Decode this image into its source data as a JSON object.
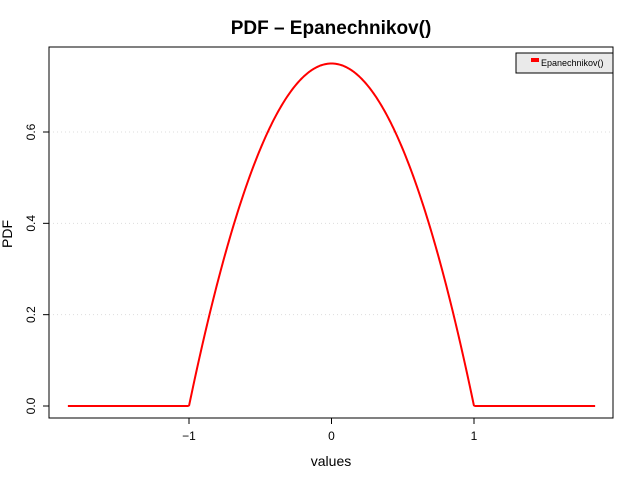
{
  "chart_data": {
    "type": "line",
    "title": "PDF – Epanechnikov()",
    "xlabel": "values",
    "ylabel": "PDF",
    "xlim": [
      -1.85,
      1.85
    ],
    "ylim": [
      0,
      0.75
    ],
    "x_ticks": [
      {
        "value": -1,
        "label": "−1"
      },
      {
        "value": 0,
        "label": "0"
      },
      {
        "value": 1,
        "label": "1"
      }
    ],
    "y_ticks": [
      {
        "value": 0.0,
        "label": "0.0"
      },
      {
        "value": 0.2,
        "label": "0.2"
      },
      {
        "value": 0.4,
        "label": "0.4"
      },
      {
        "value": 0.6,
        "label": "0.6"
      }
    ],
    "grid": "horizontal dotted",
    "legend_position": "top-right",
    "series": [
      {
        "name": "Epanechnikov()",
        "color": "#ff0000",
        "x": [
          -1.85,
          -1.5,
          -1.0,
          -0.9,
          -0.8,
          -0.7,
          -0.6,
          -0.5,
          -0.4,
          -0.3,
          -0.2,
          -0.1,
          0.0,
          0.1,
          0.2,
          0.3,
          0.4,
          0.5,
          0.6,
          0.7,
          0.8,
          0.9,
          1.0,
          1.5,
          1.85
        ],
        "y": [
          0.0,
          0.0,
          0.0,
          0.1425,
          0.27,
          0.3825,
          0.48,
          0.5625,
          0.63,
          0.6825,
          0.72,
          0.7425,
          0.75,
          0.7425,
          0.72,
          0.6825,
          0.63,
          0.5625,
          0.48,
          0.3825,
          0.27,
          0.1425,
          0.0,
          0.0,
          0.0
        ]
      }
    ]
  }
}
